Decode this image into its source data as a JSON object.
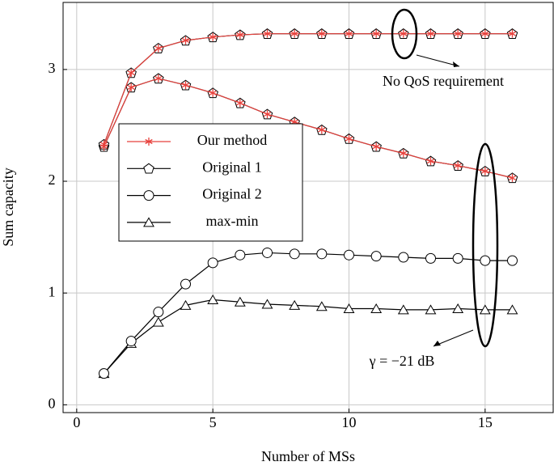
{
  "chart_data": {
    "type": "line",
    "x_label": "Number of MSs",
    "y_label": "Sum capacity",
    "x": [
      1,
      2,
      3,
      4,
      5,
      6,
      7,
      8,
      9,
      10,
      11,
      12,
      13,
      14,
      15,
      16
    ],
    "xlim": [
      -0.5,
      17.5
    ],
    "ylim": [
      -0.07,
      3.6
    ],
    "xticks": [
      0,
      5,
      10,
      15
    ],
    "yticks": [
      0,
      1,
      2,
      3
    ],
    "grid": true,
    "annotations": [
      "No QoS requirement",
      "γ = −21 dB"
    ],
    "series": [
      {
        "name": "Our method",
        "color": "#e8413c",
        "marker": "star",
        "values": [
          2.31,
          2.84,
          2.92,
          2.86,
          2.79,
          2.7,
          2.6,
          2.53,
          2.46,
          2.38,
          2.31,
          2.25,
          2.18,
          2.14,
          2.09,
          2.03
        ],
        "values_no_qos": [
          2.33,
          2.97,
          3.19,
          3.26,
          3.29,
          3.31,
          3.32,
          3.32,
          3.32,
          3.32,
          3.32,
          3.32,
          3.32,
          3.32,
          3.32,
          3.32
        ]
      },
      {
        "name": "Original 1",
        "color": "#000000",
        "marker": "pentagon",
        "values": [
          2.31,
          2.84,
          2.92,
          2.86,
          2.79,
          2.7,
          2.6,
          2.53,
          2.46,
          2.38,
          2.31,
          2.25,
          2.18,
          2.14,
          2.09,
          2.03
        ],
        "values_no_qos": [
          2.33,
          2.97,
          3.19,
          3.26,
          3.29,
          3.31,
          3.32,
          3.32,
          3.32,
          3.32,
          3.32,
          3.32,
          3.32,
          3.32,
          3.32,
          3.32
        ]
      },
      {
        "name": "Original 2",
        "color": "#000000",
        "marker": "circle",
        "values": [
          0.28,
          0.57,
          0.83,
          1.08,
          1.27,
          1.34,
          1.36,
          1.35,
          1.35,
          1.34,
          1.33,
          1.32,
          1.31,
          1.31,
          1.29,
          1.29
        ]
      },
      {
        "name": "max-min",
        "color": "#000000",
        "marker": "triangle",
        "values": [
          0.28,
          0.55,
          0.74,
          0.89,
          0.94,
          0.92,
          0.9,
          0.89,
          0.88,
          0.86,
          0.86,
          0.85,
          0.85,
          0.86,
          0.85,
          0.85
        ]
      }
    ]
  }
}
